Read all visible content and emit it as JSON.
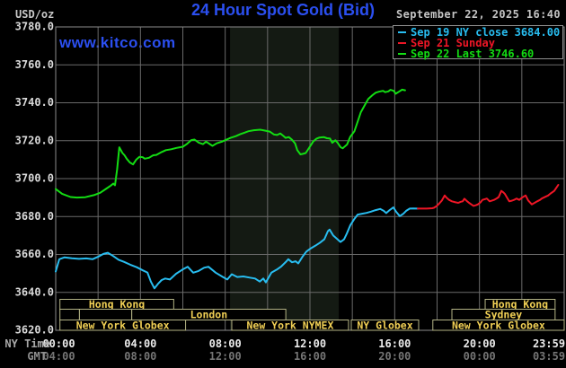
{
  "header": {
    "unit_label": "USD/oz",
    "title": "24 Hour Spot Gold (Bid)",
    "datetime": "September 22, 2025 16:40",
    "watermark": "www.kitco.com"
  },
  "legend": {
    "entries": [
      {
        "label": "Sep 19 NY close 3684.00",
        "color": "#28bdf0"
      },
      {
        "label": "Sep 21 Sunday",
        "color": "#ee1626"
      },
      {
        "label": "Sep 22 Last 3746.60",
        "color": "#13dd13"
      }
    ]
  },
  "colors": {
    "background": "#000000",
    "grid": "#6a6a6a",
    "frame": "#8c8c8c",
    "shaded_band": "#141a13",
    "session_border": "#b3b385",
    "session_text": "#f0cf55",
    "tick_ny": "#ececec",
    "tick_gmt": "#757575",
    "axis_caption": "#a9a9a9",
    "y_label": "#d9d9d9",
    "title_blue": "#2b4ff0"
  },
  "sessions": {
    "rows": [
      [
        {
          "label": "Hong Kong",
          "h1": 0.2,
          "h2": 5.57
        },
        {
          "label": "Hong Kong",
          "h1": 20.27,
          "h2": 23.57
        }
      ],
      [
        {
          "label": "",
          "h1": 0.2,
          "h2": 1.12
        },
        {
          "label": "",
          "h1": 1.12,
          "h2": 3.59
        },
        {
          "label": "London",
          "h1": 3.59,
          "h2": 10.86
        },
        {
          "label": "Sydney",
          "h1": 18.7,
          "h2": 23.57
        }
      ],
      [
        {
          "label": "New York Globex",
          "h1": 0.2,
          "h2": 6.13
        },
        {
          "label": "New York NYMEX",
          "h1": 8.31,
          "h2": 13.82
        },
        {
          "label": "NY Globex",
          "h1": 13.95,
          "h2": 17.13
        },
        {
          "label": "New York Globex",
          "h1": 17.8,
          "h2": 24.0
        }
      ]
    ]
  },
  "chart_data": {
    "type": "line",
    "title": "24 Hour Spot Gold (Bid)",
    "x_axis": {
      "label_ny": "NY Time",
      "label_gmt": "GMT",
      "hours_range": [
        0,
        24
      ],
      "grid_step_hours": 2,
      "tick_hours": [
        0,
        4,
        8,
        12,
        16,
        20,
        23.983
      ],
      "ticks_ny": [
        "00:00",
        "04:00",
        "08:00",
        "12:00",
        "16:00",
        "20:00",
        "23:59"
      ],
      "ticks_gmt": [
        "04:00",
        "08:00",
        "12:00",
        "16:00",
        "20:00",
        "00:00",
        "03:59"
      ]
    },
    "y_axis": {
      "unit": "USD/oz",
      "range": [
        3620,
        3780
      ],
      "tick_step": 20,
      "ticks": [
        "3780.0",
        "3760.0",
        "3740.0",
        "3720.0",
        "3700.0",
        "3680.0",
        "3660.0",
        "3640.0",
        "3620.0"
      ]
    },
    "shaded_band_hours": [
      8.23,
      13.36
    ],
    "series": [
      {
        "name": "Sep 19 NY close",
        "close_value": 3684.0,
        "color": "#28bdf0",
        "points": [
          [
            0,
            3651
          ],
          [
            0.17,
            3657.5
          ],
          [
            0.42,
            3658.5
          ],
          [
            0.76,
            3658
          ],
          [
            1.1,
            3657.7
          ],
          [
            1.44,
            3657.9
          ],
          [
            1.74,
            3657.5
          ],
          [
            1.99,
            3658.7
          ],
          [
            2.25,
            3660.3
          ],
          [
            2.46,
            3660.9
          ],
          [
            2.71,
            3659.2
          ],
          [
            2.97,
            3657.2
          ],
          [
            3.22,
            3656.1
          ],
          [
            3.52,
            3654.6
          ],
          [
            3.82,
            3653.3
          ],
          [
            4.11,
            3651.6
          ],
          [
            4.33,
            3650.5
          ],
          [
            4.49,
            3645.7
          ],
          [
            4.66,
            3642.1
          ],
          [
            4.83,
            3644.5
          ],
          [
            5.0,
            3646.5
          ],
          [
            5.17,
            3647.3
          ],
          [
            5.39,
            3646.8
          ],
          [
            5.68,
            3649.8
          ],
          [
            5.98,
            3652
          ],
          [
            6.23,
            3653.5
          ],
          [
            6.49,
            3650.4
          ],
          [
            6.74,
            3651.3
          ],
          [
            7.0,
            3653
          ],
          [
            7.21,
            3653.5
          ],
          [
            7.55,
            3650.4
          ],
          [
            7.89,
            3648.1
          ],
          [
            8.1,
            3646.8
          ],
          [
            8.31,
            3649.6
          ],
          [
            8.57,
            3648.1
          ],
          [
            8.86,
            3648.4
          ],
          [
            9.16,
            3647.8
          ],
          [
            9.41,
            3647.3
          ],
          [
            9.63,
            3645.7
          ],
          [
            9.8,
            3647.3
          ],
          [
            9.92,
            3645.3
          ],
          [
            10.18,
            3650.4
          ],
          [
            10.43,
            3652
          ],
          [
            10.64,
            3653.6
          ],
          [
            10.86,
            3656
          ],
          [
            10.98,
            3657.5
          ],
          [
            11.15,
            3655.9
          ],
          [
            11.32,
            3656.4
          ],
          [
            11.45,
            3655.3
          ],
          [
            11.66,
            3659
          ],
          [
            11.83,
            3661.5
          ],
          [
            12.04,
            3663.2
          ],
          [
            12.25,
            3664.6
          ],
          [
            12.47,
            3666.2
          ],
          [
            12.68,
            3668
          ],
          [
            12.85,
            3672.3
          ],
          [
            12.93,
            3673.1
          ],
          [
            13.1,
            3670
          ],
          [
            13.27,
            3668.3
          ],
          [
            13.44,
            3666.6
          ],
          [
            13.61,
            3668
          ],
          [
            13.74,
            3671
          ],
          [
            13.91,
            3675.5
          ],
          [
            14.08,
            3678.5
          ],
          [
            14.25,
            3681
          ],
          [
            14.46,
            3681.5
          ],
          [
            14.67,
            3681.9
          ],
          [
            14.88,
            3682.6
          ],
          [
            15.1,
            3683.4
          ],
          [
            15.31,
            3684
          ],
          [
            15.48,
            3683
          ],
          [
            15.6,
            3681.8
          ],
          [
            15.77,
            3683.5
          ],
          [
            15.94,
            3684.8
          ],
          [
            16.07,
            3682.5
          ],
          [
            16.24,
            3680.2
          ],
          [
            16.41,
            3681.5
          ],
          [
            16.54,
            3683
          ],
          [
            16.71,
            3684.2
          ],
          [
            16.88,
            3684.3
          ],
          [
            17.09,
            3684.2
          ]
        ]
      },
      {
        "name": "Sep 21 Sunday",
        "color": "#ee1626",
        "points": [
          [
            17.09,
            3684.2
          ],
          [
            17.3,
            3684.2
          ],
          [
            17.51,
            3684.2
          ],
          [
            17.77,
            3684.4
          ],
          [
            17.85,
            3684.6
          ],
          [
            17.98,
            3685.5
          ],
          [
            18.11,
            3687
          ],
          [
            18.23,
            3688.5
          ],
          [
            18.36,
            3691.1
          ],
          [
            18.44,
            3690
          ],
          [
            18.57,
            3688.8
          ],
          [
            18.7,
            3688
          ],
          [
            18.87,
            3687.5
          ],
          [
            19.0,
            3687.2
          ],
          [
            19.12,
            3687.8
          ],
          [
            19.21,
            3688
          ],
          [
            19.29,
            3689.4
          ],
          [
            19.42,
            3688
          ],
          [
            19.51,
            3687.2
          ],
          [
            19.63,
            3686.3
          ],
          [
            19.72,
            3685.6
          ],
          [
            19.84,
            3686
          ],
          [
            19.93,
            3686.4
          ],
          [
            20.06,
            3687.6
          ],
          [
            20.14,
            3688.8
          ],
          [
            20.27,
            3689.2
          ],
          [
            20.35,
            3689.5
          ],
          [
            20.48,
            3688
          ],
          [
            20.61,
            3688.5
          ],
          [
            20.69,
            3688.8
          ],
          [
            20.82,
            3689.6
          ],
          [
            20.91,
            3690.3
          ],
          [
            21.03,
            3693.5
          ],
          [
            21.12,
            3692.8
          ],
          [
            21.2,
            3691.9
          ],
          [
            21.33,
            3689.5
          ],
          [
            21.41,
            3688
          ],
          [
            21.54,
            3688.4
          ],
          [
            21.63,
            3688.8
          ],
          [
            21.75,
            3689.5
          ],
          [
            21.88,
            3688.8
          ],
          [
            22.01,
            3690
          ],
          [
            22.18,
            3691.1
          ],
          [
            22.3,
            3688.5
          ],
          [
            22.47,
            3686.4
          ],
          [
            22.6,
            3687.2
          ],
          [
            22.73,
            3688
          ],
          [
            22.86,
            3688.8
          ],
          [
            22.94,
            3689.5
          ],
          [
            23.07,
            3690.2
          ],
          [
            23.24,
            3691.1
          ],
          [
            23.36,
            3692.2
          ],
          [
            23.53,
            3693.5
          ],
          [
            23.62,
            3695
          ],
          [
            23.72,
            3696.7
          ]
        ]
      },
      {
        "name": "Sep 22 Last",
        "last_value": 3746.6,
        "color": "#13dd13",
        "points": [
          [
            0,
            3694.5
          ],
          [
            0.3,
            3692
          ],
          [
            0.7,
            3690.3
          ],
          [
            1.0,
            3690
          ],
          [
            1.4,
            3690.2
          ],
          [
            1.8,
            3691.3
          ],
          [
            2.1,
            3692.5
          ],
          [
            2.4,
            3694.8
          ],
          [
            2.6,
            3696.3
          ],
          [
            2.72,
            3697.4
          ],
          [
            2.8,
            3696.5
          ],
          [
            2.9,
            3705
          ],
          [
            3.0,
            3716.5
          ],
          [
            3.15,
            3713.5
          ],
          [
            3.25,
            3712.3
          ],
          [
            3.35,
            3710.5
          ],
          [
            3.5,
            3708.5
          ],
          [
            3.65,
            3707.5
          ],
          [
            3.8,
            3710
          ],
          [
            3.95,
            3711.5
          ],
          [
            4.1,
            3711.3
          ],
          [
            4.2,
            3710.5
          ],
          [
            4.4,
            3711
          ],
          [
            4.6,
            3712.3
          ],
          [
            4.75,
            3712.5
          ],
          [
            5.0,
            3714
          ],
          [
            5.2,
            3715
          ],
          [
            5.45,
            3715.5
          ],
          [
            5.7,
            3716.2
          ],
          [
            6.0,
            3716.8
          ],
          [
            6.2,
            3718.3
          ],
          [
            6.4,
            3720.3
          ],
          [
            6.55,
            3720.6
          ],
          [
            6.75,
            3719
          ],
          [
            6.95,
            3718.2
          ],
          [
            7.1,
            3719.5
          ],
          [
            7.3,
            3718
          ],
          [
            7.4,
            3717.3
          ],
          [
            7.6,
            3718.6
          ],
          [
            7.85,
            3719.5
          ],
          [
            8.05,
            3720.5
          ],
          [
            8.25,
            3721.5
          ],
          [
            8.5,
            3722.4
          ],
          [
            8.7,
            3723.4
          ],
          [
            8.9,
            3724.2
          ],
          [
            9.1,
            3725
          ],
          [
            9.35,
            3725.5
          ],
          [
            9.65,
            3725.8
          ],
          [
            9.9,
            3725.3
          ],
          [
            10.1,
            3724.8
          ],
          [
            10.3,
            3723.3
          ],
          [
            10.45,
            3723
          ],
          [
            10.6,
            3723.8
          ],
          [
            10.75,
            3722.5
          ],
          [
            10.85,
            3721.5
          ],
          [
            11.0,
            3721.9
          ],
          [
            11.15,
            3720.5
          ],
          [
            11.3,
            3718.5
          ],
          [
            11.4,
            3715
          ],
          [
            11.55,
            3712.8
          ],
          [
            11.65,
            3713
          ],
          [
            11.8,
            3713.5
          ],
          [
            11.95,
            3716
          ],
          [
            12.15,
            3719.5
          ],
          [
            12.3,
            3721
          ],
          [
            12.45,
            3721.7
          ],
          [
            12.65,
            3721.9
          ],
          [
            12.8,
            3721.3
          ],
          [
            12.95,
            3721.1
          ],
          [
            13.05,
            3718.9
          ],
          [
            13.2,
            3720.2
          ],
          [
            13.3,
            3719
          ],
          [
            13.45,
            3716.5
          ],
          [
            13.55,
            3716
          ],
          [
            13.6,
            3716.5
          ],
          [
            13.75,
            3718
          ],
          [
            13.9,
            3722
          ],
          [
            14.1,
            3725
          ],
          [
            14.25,
            3730
          ],
          [
            14.4,
            3735
          ],
          [
            14.6,
            3739
          ],
          [
            14.75,
            3742
          ],
          [
            14.95,
            3744
          ],
          [
            15.1,
            3745.3
          ],
          [
            15.25,
            3745.8
          ],
          [
            15.45,
            3746.3
          ],
          [
            15.55,
            3745.6
          ],
          [
            15.7,
            3746
          ],
          [
            15.8,
            3746.8
          ],
          [
            15.95,
            3746.3
          ],
          [
            16.05,
            3744.8
          ],
          [
            16.2,
            3745.8
          ],
          [
            16.35,
            3746.9
          ],
          [
            16.49,
            3746.6
          ]
        ]
      }
    ]
  }
}
